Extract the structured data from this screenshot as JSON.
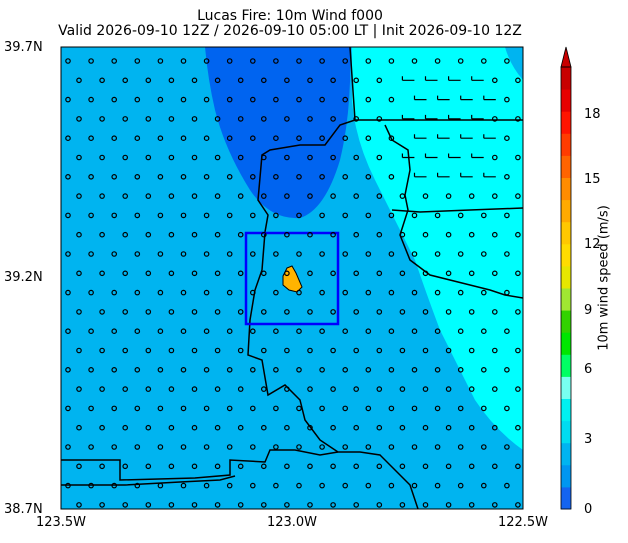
{
  "title": {
    "line1": "Lucas Fire: 10m Wind f000",
    "line2": "Valid 2026-09-10 12Z / 2026-09-10 05:00 LT | Init 2026-09-10 12Z"
  },
  "axes": {
    "y_ticks": [
      "39.7N",
      "39.2N",
      "38.7N"
    ],
    "x_ticks": [
      "123.5W",
      "123.0W",
      "122.5W"
    ],
    "lon_range": [
      -123.5,
      -122.5
    ],
    "lat_range": [
      38.7,
      39.7
    ]
  },
  "colorbar": {
    "label": "10m wind speed (m/s)",
    "ticks": [
      "0",
      "3",
      "6",
      "9",
      "12",
      "15",
      "18"
    ],
    "range": [
      0,
      19
    ],
    "extend": "max",
    "colors": [
      "#1464f0",
      "#0096f0",
      "#00b4f0",
      "#00dcf0",
      "#00f0f0",
      "#78fff0",
      "#00ff64",
      "#00e600",
      "#32d200",
      "#a0e632",
      "#e6e600",
      "#ffdc00",
      "#ffc800",
      "#ffaa00",
      "#ff8c00",
      "#ff6400",
      "#ff3c00",
      "#ff1400",
      "#e60000",
      "#c80000"
    ]
  },
  "map": {
    "fill_colors": {
      "low": "#0064f0",
      "mid": "#00b4f0",
      "high": "#00ffff",
      "fire": "#ffb400"
    },
    "highlight_box_color": "#0000ff"
  }
}
